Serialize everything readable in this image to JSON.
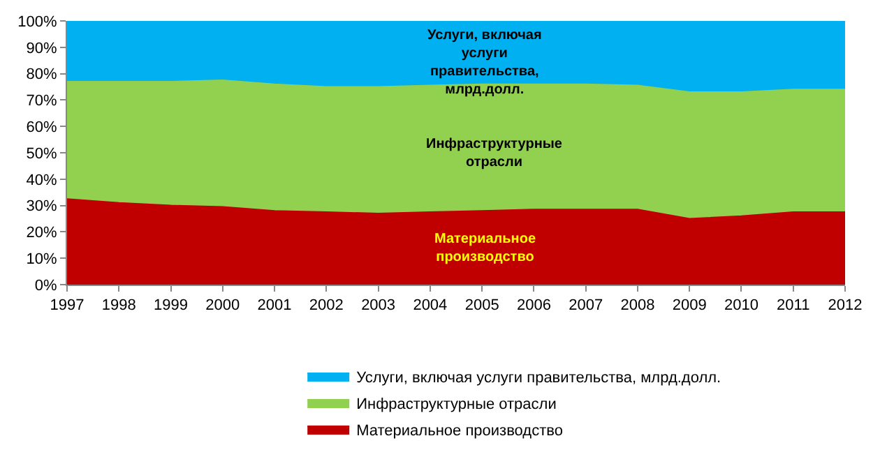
{
  "chart_data": {
    "type": "area",
    "stacked": true,
    "x": [
      1997,
      1998,
      1999,
      2000,
      2001,
      2002,
      2003,
      2004,
      2005,
      2006,
      2007,
      2008,
      2009,
      2010,
      2011,
      2012
    ],
    "series": [
      {
        "name": "Материальное производство",
        "color": "#c00000",
        "values": [
          32.5,
          31,
          30,
          29.5,
          28,
          27.5,
          27,
          27.5,
          28,
          28.5,
          28.5,
          28.5,
          25,
          26,
          27.5,
          27.5
        ]
      },
      {
        "name": "Инфраструктурные отрасли",
        "color": "#92d050",
        "values": [
          44.5,
          46,
          47,
          48,
          48,
          47.5,
          48,
          48,
          48,
          47.5,
          47.5,
          47,
          48,
          47,
          46.5,
          46.5
        ]
      },
      {
        "name": "Услуги, включая услуги правительства, млрд.долл.",
        "color": "#00b0f0",
        "values": [
          23,
          23,
          23,
          22.5,
          24,
          25,
          25,
          24.5,
          24,
          24,
          24,
          24.5,
          27,
          27,
          26,
          26
        ]
      }
    ],
    "xlim": [
      1997,
      2012
    ],
    "xticks": [
      1997,
      1998,
      1999,
      2000,
      2001,
      2002,
      2003,
      2004,
      2005,
      2006,
      2007,
      2008,
      2009,
      2010,
      2011,
      2012
    ],
    "ylim": [
      0,
      100
    ],
    "yticks": [
      {
        "value": 0,
        "label": "0%"
      },
      {
        "value": 10,
        "label": "10%"
      },
      {
        "value": 20,
        "label": "20%"
      },
      {
        "value": 30,
        "label": "30%"
      },
      {
        "value": 40,
        "label": "40%"
      },
      {
        "value": 50,
        "label": "50%"
      },
      {
        "value": 60,
        "label": "60%"
      },
      {
        "value": 70,
        "label": "70%"
      },
      {
        "value": 80,
        "label": "80%"
      },
      {
        "value": 90,
        "label": "90%"
      },
      {
        "value": 100,
        "label": "100%"
      }
    ],
    "legend": "bottom",
    "annotations": [
      "Услуги, включая\nуслуги\nправительства,\nмлрд.долл.",
      "Инфраструктурные\nотрасли",
      "Материальное\nпроизводство"
    ]
  }
}
